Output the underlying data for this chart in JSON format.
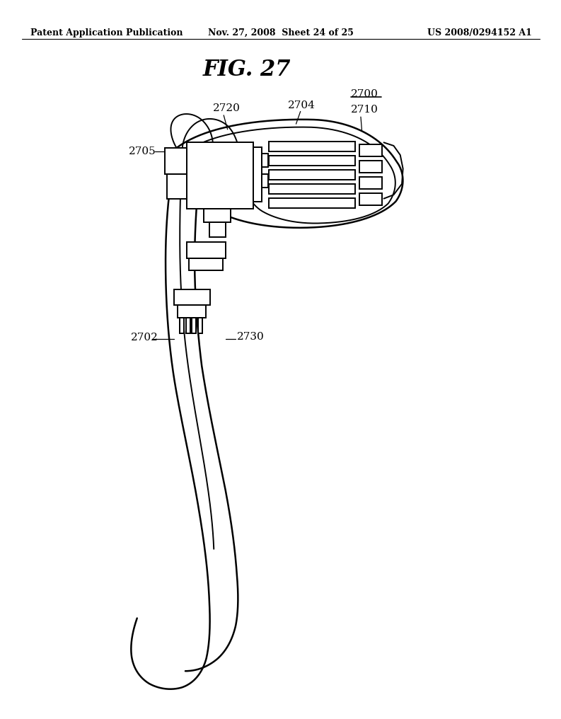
{
  "header_left": "Patent Application Publication",
  "header_mid": "Nov. 27, 2008  Sheet 24 of 25",
  "header_right": "US 2008/0294152 A1",
  "fig_title": "FIG. 27",
  "bg_color": "#ffffff",
  "line_color": "#000000",
  "label_2700": "2700",
  "label_2704": "2704",
  "label_2710": "2710",
  "label_2720": "2720",
  "label_2705": "2705",
  "label_2702": "2702",
  "label_2730": "2730"
}
